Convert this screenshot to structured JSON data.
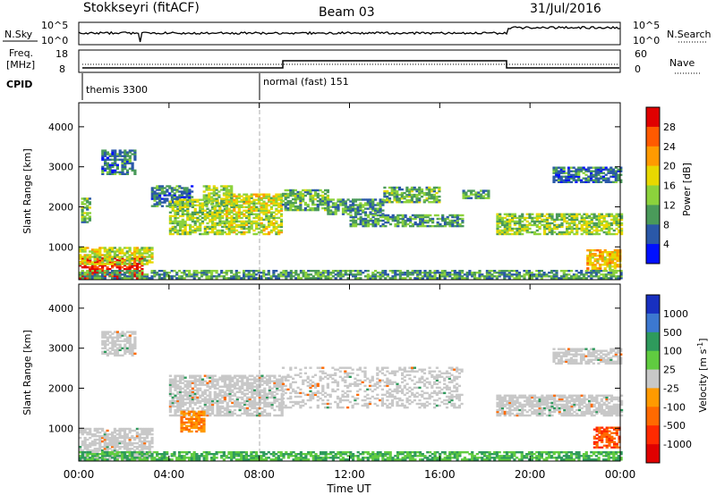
{
  "header": {
    "station": "Stokkseyri (fitACF)",
    "beam": "Beam 03",
    "date": "31/Jul/2016"
  },
  "noise_panel": {
    "left_label": "N.Sky",
    "right_label": "N.Search",
    "left_ticks": [
      "10^5",
      "10^0"
    ],
    "right_ticks": [
      "10^5",
      "10^0"
    ]
  },
  "freq_panel": {
    "left_label_1": "Freq.",
    "left_label_2": "[MHz]",
    "right_label": "Nave",
    "left_ticks": [
      "18",
      "8"
    ],
    "right_ticks": [
      "60",
      "0"
    ]
  },
  "cpid_panel": {
    "label": "CPID",
    "modes": [
      {
        "name": "themis 3300",
        "start_hour": 0
      },
      {
        "name": "normal (fast) 151",
        "start_hour": 8
      }
    ]
  },
  "x_axis": {
    "label": "Time UT",
    "ticks": [
      "00:00",
      "04:00",
      "08:00",
      "12:00",
      "16:00",
      "20:00",
      "00:00"
    ]
  },
  "colorbars": {
    "power": {
      "title": "Power [dB]",
      "labels": [
        "28",
        "24",
        "20",
        "16",
        "12",
        "8",
        "4"
      ],
      "colors": [
        "#e00000",
        "#ff5a00",
        "#ff9a00",
        "#e8d800",
        "#8cd23c",
        "#4a9a5a",
        "#2a58a8",
        "#0010ff"
      ]
    },
    "velocity": {
      "title_main": "Velocity",
      "title_unit": "[m s",
      "title_exp": "-1",
      "title_end": "]",
      "labels": [
        "1000",
        "500",
        "100",
        "25",
        "-25",
        "-100",
        "-500",
        "-1000"
      ],
      "colors": [
        "#1830c0",
        "#3c78d0",
        "#2e9a5c",
        "#60cc40",
        "#c8c8c8",
        "#ff9a00",
        "#ff6a00",
        "#ff2a00",
        "#e00000"
      ]
    }
  },
  "chart_data": [
    {
      "type": "heatmap",
      "name": "power",
      "ylabel": "Slant Range [km]",
      "xlabel": "Time UT",
      "xlim": [
        0,
        24
      ],
      "ylim": [
        180,
        4600
      ],
      "yticks": [
        1000,
        2000,
        3000,
        4000
      ],
      "zunit": "dB",
      "regions": [
        {
          "t0": 0.0,
          "t1": 2.8,
          "r0": 200,
          "r1": 700,
          "level": 28
        },
        {
          "t0": 0.0,
          "t1": 3.2,
          "r0": 550,
          "r1": 1000,
          "level": 14
        },
        {
          "t0": 0.1,
          "t1": 0.5,
          "r0": 1600,
          "r1": 2200,
          "level": 10
        },
        {
          "t0": 1.0,
          "t1": 2.5,
          "r0": 2800,
          "r1": 3400,
          "level": 6
        },
        {
          "t0": 3.2,
          "t1": 5.0,
          "r0": 2000,
          "r1": 2500,
          "level": 6
        },
        {
          "t0": 4.0,
          "t1": 6.5,
          "r0": 1300,
          "r1": 2200,
          "level": 12
        },
        {
          "t0": 5.5,
          "t1": 6.8,
          "r0": 2000,
          "r1": 2500,
          "level": 12
        },
        {
          "t0": 6.5,
          "t1": 9.0,
          "r0": 1300,
          "r1": 2300,
          "level": 14
        },
        {
          "t0": 9.0,
          "t1": 11.0,
          "r0": 1900,
          "r1": 2400,
          "level": 10
        },
        {
          "t0": 11.0,
          "t1": 13.5,
          "r0": 1800,
          "r1": 2200,
          "level": 8
        },
        {
          "t0": 12.0,
          "t1": 17.0,
          "r0": 1500,
          "r1": 1800,
          "level": 8
        },
        {
          "t0": 13.5,
          "t1": 16.0,
          "r0": 2100,
          "r1": 2500,
          "level": 10
        },
        {
          "t0": 17.0,
          "t1": 18.2,
          "r0": 2200,
          "r1": 2400,
          "level": 8
        },
        {
          "t0": 18.5,
          "t1": 24.0,
          "r0": 1300,
          "r1": 1800,
          "level": 12
        },
        {
          "t0": 21.0,
          "t1": 24.0,
          "r0": 2600,
          "r1": 3000,
          "level": 6
        },
        {
          "t0": 22.5,
          "t1": 24.0,
          "r0": 400,
          "r1": 900,
          "level": 18
        },
        {
          "t0": 0.0,
          "t1": 24.0,
          "r0": 200,
          "r1": 400,
          "level": 8
        }
      ]
    },
    {
      "type": "heatmap",
      "name": "velocity",
      "ylabel": "Slant Range [km]",
      "xlabel": "Time UT",
      "xlim": [
        0,
        24
      ],
      "ylim": [
        180,
        4600
      ],
      "yticks": [
        1000,
        2000,
        3000,
        4000
      ],
      "zunit": "m s-1",
      "regions": [
        {
          "t0": 0.0,
          "t1": 3.2,
          "r0": 200,
          "r1": 1000,
          "level": 0
        },
        {
          "t0": 0.0,
          "t1": 24.0,
          "r0": 200,
          "r1": 400,
          "level": 100
        },
        {
          "t0": 1.0,
          "t1": 2.5,
          "r0": 2800,
          "r1": 3400,
          "level": 0
        },
        {
          "t0": 4.0,
          "t1": 9.0,
          "r0": 1300,
          "r1": 2300,
          "level": 0
        },
        {
          "t0": 4.5,
          "t1": 5.5,
          "r0": 900,
          "r1": 1400,
          "level": -100
        },
        {
          "t0": 9.0,
          "t1": 17.0,
          "r0": 1500,
          "r1": 2500,
          "level": 0
        },
        {
          "t0": 18.5,
          "t1": 24.0,
          "r0": 1300,
          "r1": 1800,
          "level": 0
        },
        {
          "t0": 21.0,
          "t1": 24.0,
          "r0": 2600,
          "r1": 3000,
          "level": 0
        },
        {
          "t0": 22.8,
          "t1": 24.0,
          "r0": 500,
          "r1": 1000,
          "level": -500
        }
      ]
    }
  ]
}
